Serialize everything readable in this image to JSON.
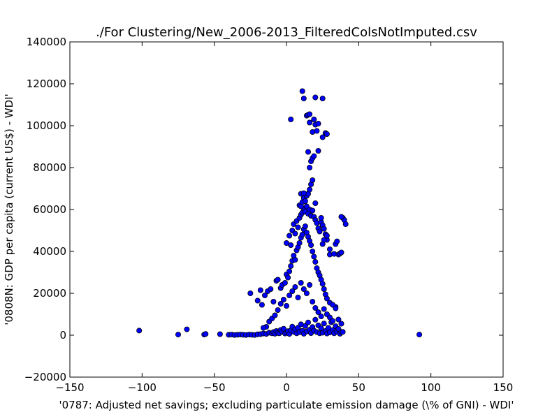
{
  "chart_data": {
    "type": "scatter",
    "title": "./For Clustering/New_2006-2013_FilteredColsNotImputed.csv",
    "xlabel": "'0787: Adjusted net savings; excluding particulate emission damage  (\\% of GNI) - WDI'",
    "ylabel": "'0808N: GDP per capita  (current US$) - WDI'",
    "xlim": [
      -150,
      150
    ],
    "ylim": [
      -20000,
      140000
    ],
    "xticks": [
      -150,
      -100,
      -50,
      0,
      50,
      100,
      150
    ],
    "xtick_labels": [
      "−150",
      "−100",
      "−50",
      "0",
      "50",
      "100",
      "150"
    ],
    "yticks": [
      -20000,
      0,
      20000,
      40000,
      60000,
      80000,
      100000,
      120000,
      140000
    ],
    "ytick_labels": [
      "−20000",
      "0",
      "20000",
      "40000",
      "60000",
      "80000",
      "100000",
      "120000",
      "140000"
    ],
    "grid": false,
    "marker_color": "#0000ff",
    "marker_edge_color": "#000000",
    "points": [
      [
        -102,
        2200
      ],
      [
        -75,
        300
      ],
      [
        -69,
        2800
      ],
      [
        -57,
        300
      ],
      [
        -56,
        600
      ],
      [
        -46,
        500
      ],
      [
        92,
        300
      ],
      [
        -40,
        200
      ],
      [
        -38,
        300
      ],
      [
        -36,
        100
      ],
      [
        -34,
        200
      ],
      [
        -32,
        300
      ],
      [
        -30,
        200
      ],
      [
        -28,
        100
      ],
      [
        -26,
        300
      ],
      [
        -24,
        200
      ],
      [
        -22,
        100
      ],
      [
        -20,
        400
      ],
      [
        -18,
        500
      ],
      [
        -16,
        800
      ],
      [
        -14,
        600
      ],
      [
        -12,
        1200
      ],
      [
        -10,
        900
      ],
      [
        -9,
        1500
      ],
      [
        -8,
        700
      ],
      [
        -7,
        2000
      ],
      [
        -6,
        1100
      ],
      [
        -5,
        900
      ],
      [
        -4,
        2500
      ],
      [
        -3,
        1700
      ],
      [
        -2,
        3100
      ],
      [
        -1,
        800
      ],
      [
        0,
        1300
      ],
      [
        1,
        1900
      ],
      [
        2,
        600
      ],
      [
        3,
        2300
      ],
      [
        4,
        4100
      ],
      [
        5,
        1600
      ],
      [
        6,
        2800
      ],
      [
        7,
        900
      ],
      [
        8,
        3600
      ],
      [
        9,
        1400
      ],
      [
        10,
        5200
      ],
      [
        11,
        2100
      ],
      [
        12,
        700
      ],
      [
        13,
        4400
      ],
      [
        14,
        1800
      ],
      [
        15,
        6100
      ],
      [
        16,
        2600
      ],
      [
        17,
        1000
      ],
      [
        18,
        3900
      ],
      [
        19,
        2200
      ],
      [
        20,
        7400
      ],
      [
        21,
        1500
      ],
      [
        22,
        4700
      ],
      [
        23,
        900
      ],
      [
        24,
        3300
      ],
      [
        25,
        1200
      ],
      [
        26,
        5600
      ],
      [
        27,
        2000
      ],
      [
        28,
        800
      ],
      [
        29,
        3500
      ],
      [
        30,
        1300
      ],
      [
        31,
        6200
      ],
      [
        32,
        2400
      ],
      [
        33,
        900
      ],
      [
        34,
        4300
      ],
      [
        35,
        1700
      ],
      [
        36,
        3000
      ],
      [
        37,
        700
      ],
      [
        38,
        1500
      ],
      [
        39,
        1600
      ],
      [
        -12,
        6500
      ],
      [
        -14,
        4000
      ],
      [
        -16,
        3500
      ],
      [
        -10,
        8000
      ],
      [
        -8,
        9500
      ],
      [
        -6,
        12000
      ],
      [
        -4,
        15000
      ],
      [
        -2,
        17000
      ],
      [
        0,
        14000
      ],
      [
        2,
        19000
      ],
      [
        4,
        21000
      ],
      [
        6,
        23000
      ],
      [
        8,
        18000
      ],
      [
        10,
        25000
      ],
      [
        12,
        22000
      ],
      [
        14,
        20000
      ],
      [
        16,
        24000
      ],
      [
        18,
        16000
      ],
      [
        20,
        13000
      ],
      [
        22,
        11000
      ],
      [
        24,
        9000
      ],
      [
        26,
        12500
      ],
      [
        28,
        10000
      ],
      [
        30,
        8500
      ],
      [
        32,
        6800
      ],
      [
        34,
        13500
      ],
      [
        36,
        7500
      ],
      [
        38,
        5500
      ],
      [
        -25,
        20000
      ],
      [
        -20,
        16500
      ],
      [
        -18,
        21500
      ],
      [
        -17,
        14500
      ],
      [
        -15,
        19000
      ],
      [
        -13,
        21000
      ],
      [
        -11,
        22000
      ],
      [
        -9,
        16000
      ],
      [
        -7,
        26000
      ],
      [
        -6,
        26500
      ],
      [
        -4,
        22500
      ],
      [
        -3,
        24000
      ],
      [
        -1,
        25000
      ],
      [
        0,
        29000
      ],
      [
        1,
        27500
      ],
      [
        2,
        30500
      ],
      [
        3,
        33000
      ],
      [
        4,
        35500
      ],
      [
        5,
        38000
      ],
      [
        6,
        36000
      ],
      [
        7,
        40500
      ],
      [
        8,
        42000
      ],
      [
        9,
        44000
      ],
      [
        10,
        46500
      ],
      [
        11,
        48000
      ],
      [
        12,
        50500
      ],
      [
        13,
        52000
      ],
      [
        14,
        49000
      ],
      [
        15,
        47000
      ],
      [
        16,
        45000
      ],
      [
        17,
        43000
      ],
      [
        18,
        40000
      ],
      [
        19,
        37500
      ],
      [
        20,
        35000
      ],
      [
        21,
        32000
      ],
      [
        22,
        30000
      ],
      [
        23,
        28500
      ],
      [
        24,
        26500
      ],
      [
        25,
        24500
      ],
      [
        26,
        22000
      ],
      [
        27,
        19500
      ],
      [
        28,
        17500
      ],
      [
        30,
        15500
      ],
      [
        32,
        14500
      ],
      [
        34,
        12800
      ],
      [
        0,
        44000
      ],
      [
        2,
        47500
      ],
      [
        3,
        43000
      ],
      [
        4,
        50000
      ],
      [
        5,
        53000
      ],
      [
        6,
        48500
      ],
      [
        7,
        54500
      ],
      [
        8,
        51500
      ],
      [
        9,
        56000
      ],
      [
        10,
        57500
      ],
      [
        11,
        58500
      ],
      [
        12,
        60500
      ],
      [
        13,
        59000
      ],
      [
        14,
        61500
      ],
      [
        15,
        58000
      ],
      [
        16,
        60000
      ],
      [
        17,
        57000
      ],
      [
        18,
        59500
      ],
      [
        19,
        56500
      ],
      [
        20,
        55000
      ],
      [
        21,
        53500
      ],
      [
        22,
        51000
      ],
      [
        23,
        49500
      ],
      [
        24,
        54000
      ],
      [
        25,
        52500
      ],
      [
        26,
        50800
      ],
      [
        27,
        48200
      ],
      [
        28,
        45500
      ],
      [
        30,
        41000
      ],
      [
        9,
        62000
      ],
      [
        10,
        61500
      ],
      [
        11,
        63500
      ],
      [
        12,
        65500
      ],
      [
        13,
        64000
      ],
      [
        14,
        66500
      ],
      [
        15,
        67500
      ],
      [
        16,
        69500
      ],
      [
        10,
        67500
      ],
      [
        12,
        67800
      ],
      [
        17,
        72000
      ],
      [
        18,
        74000
      ],
      [
        16,
        80000
      ],
      [
        17,
        83000
      ],
      [
        18,
        84500
      ],
      [
        19,
        85500
      ],
      [
        15,
        87500
      ],
      [
        22,
        88000
      ],
      [
        25,
        94500
      ],
      [
        18,
        97000
      ],
      [
        21,
        97500
      ],
      [
        27,
        96500
      ],
      [
        28,
        96000
      ],
      [
        20,
        100500
      ],
      [
        16,
        101500
      ],
      [
        22,
        101000
      ],
      [
        19,
        103000
      ],
      [
        3,
        103000
      ],
      [
        14,
        104800
      ],
      [
        15,
        105200
      ],
      [
        16,
        105500
      ],
      [
        12,
        113000
      ],
      [
        20,
        113500
      ],
      [
        25,
        113000
      ],
      [
        11,
        116500
      ],
      [
        25,
        43500
      ],
      [
        26,
        45500
      ],
      [
        28,
        47500
      ],
      [
        30,
        38500
      ],
      [
        33,
        38800
      ],
      [
        34,
        43500
      ],
      [
        35,
        44800
      ],
      [
        36,
        38500
      ],
      [
        37,
        39000
      ],
      [
        38,
        39500
      ],
      [
        39,
        56000
      ],
      [
        40,
        55000
      ],
      [
        41,
        53000
      ],
      [
        38,
        56500
      ],
      [
        20,
        63000
      ],
      [
        24,
        56000
      ]
    ]
  }
}
